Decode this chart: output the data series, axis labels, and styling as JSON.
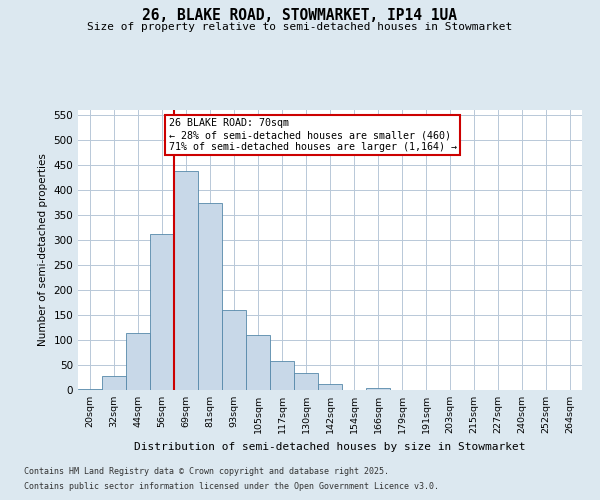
{
  "title": "26, BLAKE ROAD, STOWMARKET, IP14 1UA",
  "subtitle": "Size of property relative to semi-detached houses in Stowmarket",
  "xlabel": "Distribution of semi-detached houses by size in Stowmarket",
  "ylabel": "Number of semi-detached properties",
  "bin_labels": [
    "20sqm",
    "32sqm",
    "44sqm",
    "56sqm",
    "69sqm",
    "81sqm",
    "93sqm",
    "105sqm",
    "117sqm",
    "130sqm",
    "142sqm",
    "154sqm",
    "166sqm",
    "179sqm",
    "191sqm",
    "203sqm",
    "215sqm",
    "227sqm",
    "240sqm",
    "252sqm",
    "264sqm"
  ],
  "bar_heights": [
    3,
    28,
    115,
    312,
    438,
    375,
    160,
    110,
    58,
    35,
    12,
    0,
    5,
    0,
    0,
    0,
    0,
    0,
    0,
    0,
    0
  ],
  "bar_color": "#c8d8e8",
  "bar_edge_color": "#5588aa",
  "property_bin_index": 4,
  "annotation_text": "26 BLAKE ROAD: 70sqm\n← 28% of semi-detached houses are smaller (460)\n71% of semi-detached houses are larger (1,164) →",
  "annotation_box_color": "#ffffff",
  "annotation_box_edge_color": "#cc0000",
  "vline_color": "#cc0000",
  "ylim": [
    0,
    560
  ],
  "yticks": [
    0,
    50,
    100,
    150,
    200,
    250,
    300,
    350,
    400,
    450,
    500,
    550
  ],
  "footer_line1": "Contains HM Land Registry data © Crown copyright and database right 2025.",
  "footer_line2": "Contains public sector information licensed under the Open Government Licence v3.0.",
  "bg_color": "#dce8f0",
  "plot_bg_color": "#ffffff",
  "grid_color": "#b8c8d8"
}
